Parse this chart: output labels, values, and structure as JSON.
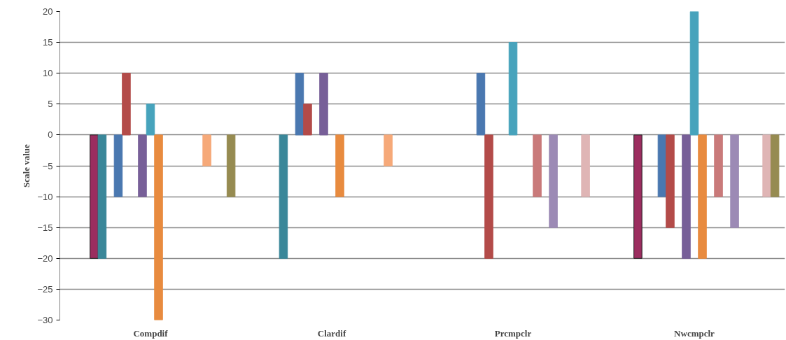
{
  "chart_data": {
    "type": "bar",
    "ylabel": "Scale value",
    "categories": [
      "Compdif",
      "Clardif",
      "Prcmpclr",
      "Nwcmpclr"
    ],
    "ylim": [
      -30,
      20
    ],
    "yticks": [
      -30,
      -25,
      -20,
      -15,
      -10,
      -5,
      0,
      5,
      10,
      15,
      20
    ],
    "grid": "y",
    "series": [
      {
        "values": [
          null,
          null,
          null,
          null
        ]
      },
      {
        "values": [
          null,
          null,
          null,
          null
        ]
      },
      {
        "values": [
          null,
          null,
          null,
          null
        ]
      },
      {
        "color": "#9b2d5f",
        "values": [
          -20,
          null,
          null,
          -20
        ]
      },
      {
        "color": "#3a8799",
        "values": [
          -20,
          -20,
          null,
          null
        ]
      },
      {
        "values": [
          null,
          null,
          null,
          null
        ]
      },
      {
        "color": "#4a78b0",
        "values": [
          -10,
          10,
          10,
          -10
        ]
      },
      {
        "color": "#b34b49",
        "values": [
          10,
          5,
          -20,
          -15
        ]
      },
      {
        "values": [
          null,
          null,
          null,
          null
        ]
      },
      {
        "color": "#775f98",
        "values": [
          -10,
          10,
          null,
          -20
        ]
      },
      {
        "color": "#47a3bc",
        "values": [
          5,
          null,
          15,
          20
        ]
      },
      {
        "color": "#e88b3f",
        "values": [
          -30,
          -10,
          null,
          -20
        ]
      },
      {
        "values": [
          null,
          null,
          null,
          null
        ]
      },
      {
        "color": "#c97a7a",
        "values": [
          null,
          null,
          -10,
          -10
        ]
      },
      {
        "values": [
          null,
          null,
          null,
          null
        ]
      },
      {
        "color": "#9c8ab5",
        "values": [
          null,
          null,
          -15,
          -15
        ]
      },
      {
        "values": [
          null,
          null,
          null,
          null
        ]
      },
      {
        "color": "#f6a979",
        "values": [
          -5,
          -5,
          null,
          null
        ]
      },
      {
        "values": [
          null,
          null,
          null,
          null
        ]
      },
      {
        "color": "#dfb5b5",
        "values": [
          null,
          null,
          -10,
          -10
        ]
      },
      {
        "color": "#968b51",
        "values": [
          -10,
          null,
          null,
          -10
        ]
      }
    ]
  }
}
